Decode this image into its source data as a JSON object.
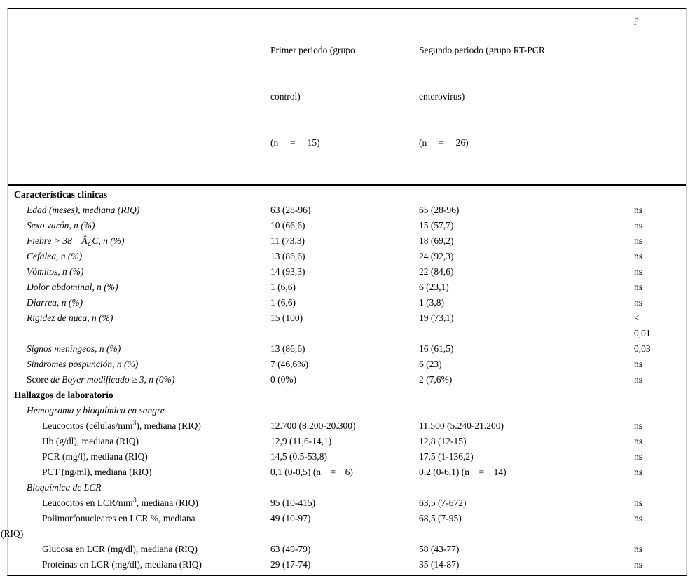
{
  "table": {
    "header": {
      "col1": "",
      "col2": {
        "lines": [
          "Primer periodo (grupo",
          "control)",
          "(n     =     15)"
        ]
      },
      "col3": {
        "lines": [
          "Segundo periodo (grupo RT-PCR",
          "enterovirus)",
          "(n     =     26)"
        ]
      },
      "p_label": "p"
    },
    "rows": [
      {
        "indent": "section",
        "label_parts": [
          {
            "t": "Características clínicas",
            "s": "b"
          }
        ],
        "values": [
          "",
          ""
        ],
        "p": ""
      },
      {
        "indent": "item",
        "label_parts": [
          {
            "t": "Edad (meses), mediana (RIQ)",
            "s": "i"
          }
        ],
        "values": [
          "63 (28-96)",
          "65 (28-96)"
        ],
        "p": "ns"
      },
      {
        "indent": "item",
        "label_parts": [
          {
            "t": "Sexo varón, n (%)",
            "s": "i"
          }
        ],
        "values": [
          "10 (66,6)",
          "15 (57,7)"
        ],
        "p": "ns"
      },
      {
        "indent": "item",
        "label_parts": [
          {
            "t": "Fiebre > 38    Â¿C, n (%)",
            "s": "i"
          }
        ],
        "values": [
          "11 (73,3)",
          "18 (69,2)"
        ],
        "p": "ns"
      },
      {
        "indent": "item",
        "label_parts": [
          {
            "t": "Cefalea, n (%)",
            "s": "i"
          }
        ],
        "values": [
          "13 (86,6)",
          "24 (92,3)"
        ],
        "p": "ns"
      },
      {
        "indent": "item",
        "label_parts": [
          {
            "t": "Vómitos, n (%)",
            "s": "i"
          }
        ],
        "values": [
          "14 (93,3)",
          "22 (84,6)"
        ],
        "p": "ns"
      },
      {
        "indent": "item",
        "label_parts": [
          {
            "t": "Dolor abdominal, n (%)",
            "s": "i"
          }
        ],
        "values": [
          "1 (6,6)",
          "6 (23,1)"
        ],
        "p": "ns"
      },
      {
        "indent": "item",
        "label_parts": [
          {
            "t": "Diarrea, n (%)",
            "s": "i"
          }
        ],
        "values": [
          "1 (6,6)",
          "1 (3,8)"
        ],
        "p": "ns"
      },
      {
        "indent": "item",
        "label_parts": [
          {
            "t": "Rigidez de nuca, n (%)",
            "s": "i"
          }
        ],
        "values": [
          "15 (100)",
          "19 (73,1)"
        ],
        "p": "<\n0,01"
      },
      {
        "indent": "item",
        "label_parts": [
          {
            "t": "Signos meníngeos, n (%)",
            "s": "i"
          }
        ],
        "values": [
          "13 (86,6)",
          "16 (61,5)"
        ],
        "p": "0,03"
      },
      {
        "indent": "item",
        "label_parts": [
          {
            "t": "Síndromes pospunción, n (%)",
            "s": "i"
          }
        ],
        "values": [
          "7 (46,6%)",
          "6 (23)"
        ],
        "p": "ns"
      },
      {
        "indent": "item",
        "label_parts": [
          {
            "t": "Score ",
            "s": "r"
          },
          {
            "t": "de Boyer modificado ≥ 3, n (0%)",
            "s": "i"
          }
        ],
        "values": [
          "0 (0%)",
          "2 (7,6%)"
        ],
        "p": "ns"
      },
      {
        "indent": "section",
        "label_parts": [
          {
            "t": "Hallazgos de laboratorio",
            "s": "b"
          }
        ],
        "values": [
          "",
          ""
        ],
        "p": ""
      },
      {
        "indent": "item",
        "label_parts": [
          {
            "t": "Hemograma y bioquímica en sangre",
            "s": "i"
          }
        ],
        "values": [
          "",
          ""
        ],
        "p": ""
      },
      {
        "indent": "item2",
        "label_parts": [
          {
            "t": "Leucocitos (células/mm",
            "s": "r"
          },
          {
            "t": "3",
            "s": "sup"
          },
          {
            "t": "), mediana (RIQ)",
            "s": "r"
          }
        ],
        "values": [
          "12.700 (8.200-20.300)",
          "11.500 (5.240-21.200)"
        ],
        "p": "ns"
      },
      {
        "indent": "item2",
        "label_parts": [
          {
            "t": "Hb (g/dl), mediana (RIQ)",
            "s": "r"
          }
        ],
        "values": [
          "12,9 (11,6-14,1)",
          "12,8 (12-15)"
        ],
        "p": "ns"
      },
      {
        "indent": "item2",
        "label_parts": [
          {
            "t": "PCR (mg/l), mediana (RIQ)",
            "s": "r"
          }
        ],
        "values": [
          "14,5 (0,5-53,8)",
          "17,5 (1-136,2)"
        ],
        "p": "ns"
      },
      {
        "indent": "item2",
        "label_parts": [
          {
            "t": "PCT (ng/ml), mediana (RIQ)",
            "s": "r"
          }
        ],
        "values": [
          "0,1 (0-0,5) (n    =    6)",
          "0,2 (0-6,1) (n    =    14)"
        ],
        "p": "ns"
      },
      {
        "indent": "item",
        "label_parts": [
          {
            "t": "Bioquímica de LCR",
            "s": "i"
          }
        ],
        "values": [
          "",
          ""
        ],
        "p": ""
      },
      {
        "indent": "item2",
        "label_parts": [
          {
            "t": "Leucocitos en LCR/mm",
            "s": "r"
          },
          {
            "t": "3",
            "s": "sup"
          },
          {
            "t": ", mediana (RIQ)",
            "s": "r"
          }
        ],
        "values": [
          "95 (10-415)",
          "63,5 (7-672)"
        ],
        "p": "ns"
      },
      {
        "indent": "item2",
        "label_parts": [
          {
            "t": "Polimorfonucleares en LCR %, mediana",
            "s": "r"
          },
          {
            "t": "(RIQ)",
            "s": "hang"
          }
        ],
        "values": [
          "49 (10-97)",
          "68,5 (7-95)"
        ],
        "p": "ns"
      },
      {
        "indent": "item2",
        "label_parts": [
          {
            "t": "Glucosa en LCR (mg/dl), mediana (RIQ)",
            "s": "r"
          }
        ],
        "values": [
          "63 (49-79)",
          "58 (43-77)"
        ],
        "p": "ns"
      },
      {
        "indent": "item2",
        "label_parts": [
          {
            "t": "Proteínas en LCR (mg/dl), mediana (RIQ)",
            "s": "r"
          }
        ],
        "values": [
          "29 (17-74)",
          "35 (14-87)"
        ],
        "p": "ns"
      }
    ]
  },
  "colors": {
    "text": "#000000",
    "rule": "#000000",
    "side_border": "#cccccc",
    "background": "#ffffff"
  }
}
